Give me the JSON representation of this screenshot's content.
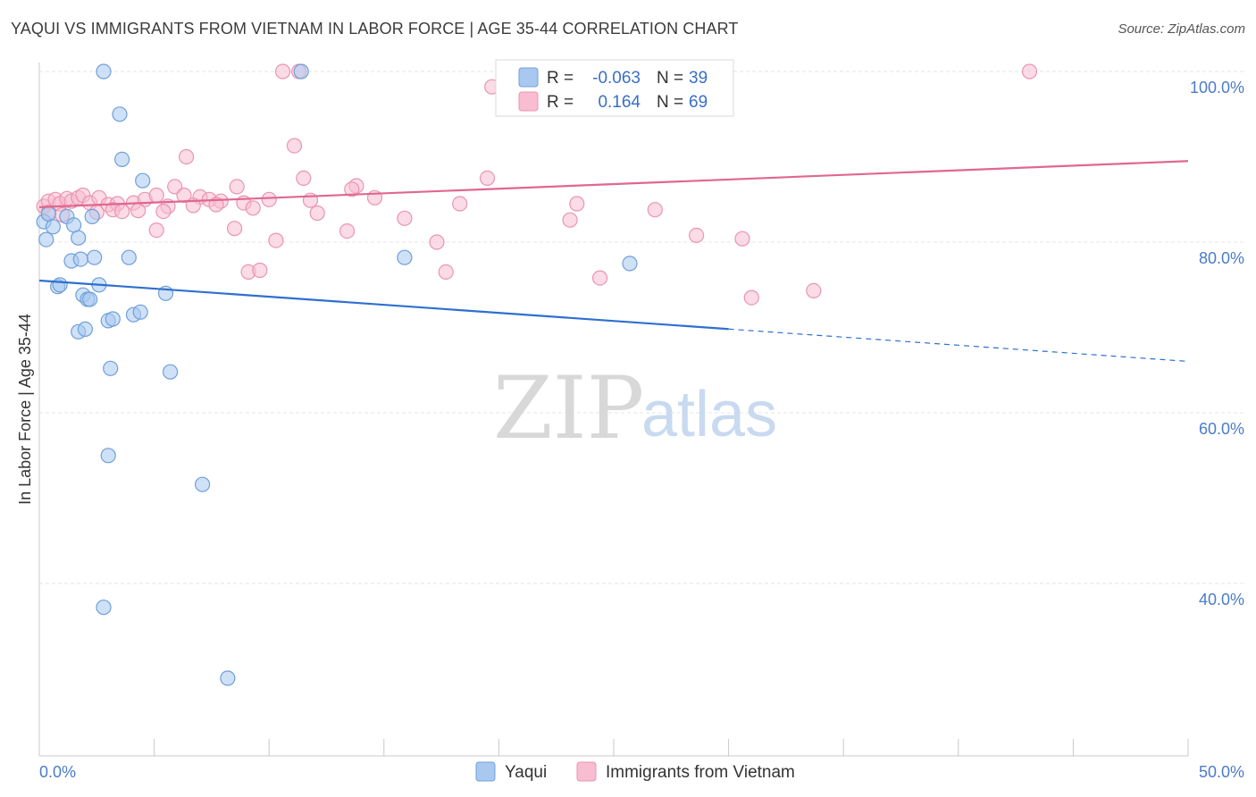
{
  "header": {
    "title": "YAQUI VS IMMIGRANTS FROM VIETNAM IN LABOR FORCE | AGE 35-44 CORRELATION CHART",
    "source": "Source: ZipAtlas.com"
  },
  "watermark": {
    "zip": "ZIP",
    "atlas": "atlas"
  },
  "legend": {
    "r_label": "R =",
    "n_label": "N =",
    "rows": [
      {
        "r": "-0.063",
        "n": "39"
      },
      {
        "r": "0.164",
        "n": "69"
      }
    ]
  },
  "chart_data": {
    "type": "scatter",
    "xlabel": "",
    "ylabel": "In Labor Force | Age 35-44",
    "xlim": [
      0,
      50
    ],
    "ylim": [
      20,
      102
    ],
    "x_tick_labels": [
      {
        "value": 0,
        "label": "0.0%"
      },
      {
        "value": 50,
        "label": "50.0%"
      }
    ],
    "y_tick_labels": [
      {
        "value": 100,
        "label": "100.0%"
      },
      {
        "value": 80,
        "label": "80.0%"
      },
      {
        "value": 60,
        "label": "60.0%"
      },
      {
        "value": 40,
        "label": "40.0%"
      }
    ],
    "grid": true,
    "legend_position": "top-center",
    "colors": {
      "yaqui_fill": "#a8c8f0",
      "yaqui_stroke": "#6f9fd8",
      "yaqui_line": "#2f6fd0",
      "vietnam_fill": "#f8bdd0",
      "vietnam_stroke": "#ea94b2",
      "vietnam_line": "#e0678f"
    },
    "series": [
      {
        "name": "Yaqui",
        "key": "yaqui",
        "points": [
          [
            2.8,
            100
          ],
          [
            3.5,
            95
          ],
          [
            3.6,
            89.7
          ],
          [
            4.5,
            87.2
          ],
          [
            11.4,
            100
          ],
          [
            0.2,
            82.4
          ],
          [
            0.4,
            83.3
          ],
          [
            0.6,
            81.8
          ],
          [
            1.2,
            83
          ],
          [
            1.5,
            82
          ],
          [
            1.7,
            80.5
          ],
          [
            2.3,
            83
          ],
          [
            0.3,
            80.3
          ],
          [
            1.4,
            77.8
          ],
          [
            1.8,
            78
          ],
          [
            2.4,
            78.2
          ],
          [
            3.9,
            78.2
          ],
          [
            15.9,
            78.2
          ],
          [
            25.7,
            77.5
          ],
          [
            0.8,
            74.8
          ],
          [
            0.9,
            75
          ],
          [
            1.9,
            73.8
          ],
          [
            2.1,
            73.3
          ],
          [
            2.2,
            73.3
          ],
          [
            2.6,
            75
          ],
          [
            5.5,
            74
          ],
          [
            1.7,
            69.5
          ],
          [
            2.0,
            69.8
          ],
          [
            3.0,
            70.8
          ],
          [
            3.2,
            71
          ],
          [
            4.1,
            71.5
          ],
          [
            4.4,
            71.8
          ],
          [
            3.1,
            65.2
          ],
          [
            5.7,
            64.8
          ],
          [
            3.0,
            55
          ],
          [
            7.1,
            51.6
          ],
          [
            2.8,
            37.2
          ],
          [
            8.2,
            28.9
          ]
        ],
        "trend": {
          "x_start": 0,
          "x_solid_end": 30,
          "x_end": 50,
          "y_start": 75.5,
          "slope": -0.1895
        }
      },
      {
        "name": "Immigrants from Vietnam",
        "key": "vietnam",
        "points": [
          [
            10.6,
            100
          ],
          [
            11.3,
            100
          ],
          [
            20.6,
            100
          ],
          [
            27.4,
            100
          ],
          [
            43.1,
            100
          ],
          [
            19.7,
            98.2
          ],
          [
            11.1,
            91.3
          ],
          [
            6.4,
            90
          ],
          [
            11.5,
            87.5
          ],
          [
            19.5,
            87.5
          ],
          [
            5.9,
            86.5
          ],
          [
            8.6,
            86.5
          ],
          [
            13.8,
            86.6
          ],
          [
            13.6,
            86.2
          ],
          [
            0.2,
            84.2
          ],
          [
            0.4,
            84.8
          ],
          [
            0.7,
            85
          ],
          [
            0.9,
            84.5
          ],
          [
            1.2,
            85.1
          ],
          [
            1.4,
            84.8
          ],
          [
            1.7,
            85.2
          ],
          [
            1.9,
            85.5
          ],
          [
            2.2,
            84.6
          ],
          [
            2.6,
            85.2
          ],
          [
            3.0,
            84.4
          ],
          [
            3.4,
            84.5
          ],
          [
            4.1,
            84.6
          ],
          [
            4.6,
            85
          ],
          [
            5.1,
            85.5
          ],
          [
            5.6,
            84.2
          ],
          [
            6.3,
            85.5
          ],
          [
            7.0,
            85.3
          ],
          [
            7.4,
            85
          ],
          [
            7.9,
            84.8
          ],
          [
            8.9,
            84.6
          ],
          [
            10.0,
            85
          ],
          [
            11.8,
            84.9
          ],
          [
            14.6,
            85.2
          ],
          [
            18.3,
            84.5
          ],
          [
            23.4,
            84.5
          ],
          [
            0.4,
            83.5
          ],
          [
            1.0,
            83.2
          ],
          [
            2.5,
            83.5
          ],
          [
            3.2,
            83.8
          ],
          [
            3.6,
            83.6
          ],
          [
            4.3,
            83.7
          ],
          [
            5.4,
            83.6
          ],
          [
            6.7,
            84.3
          ],
          [
            7.7,
            84.4
          ],
          [
            9.3,
            84
          ],
          [
            12.1,
            83.4
          ],
          [
            15.9,
            82.8
          ],
          [
            23.1,
            82.6
          ],
          [
            26.8,
            83.8
          ],
          [
            5.1,
            81.4
          ],
          [
            8.5,
            81.6
          ],
          [
            13.4,
            81.3
          ],
          [
            10.3,
            80.2
          ],
          [
            17.3,
            80
          ],
          [
            28.6,
            80.8
          ],
          [
            30.6,
            80.4
          ],
          [
            9.1,
            76.5
          ],
          [
            9.6,
            76.7
          ],
          [
            17.7,
            76.5
          ],
          [
            24.4,
            75.8
          ],
          [
            33.7,
            74.3
          ],
          [
            31.0,
            73.5
          ]
        ],
        "trend": {
          "x_start": 0,
          "x_solid_end": 50,
          "x_end": 50,
          "y_start": 84.1,
          "slope": 0.108
        }
      }
    ]
  }
}
